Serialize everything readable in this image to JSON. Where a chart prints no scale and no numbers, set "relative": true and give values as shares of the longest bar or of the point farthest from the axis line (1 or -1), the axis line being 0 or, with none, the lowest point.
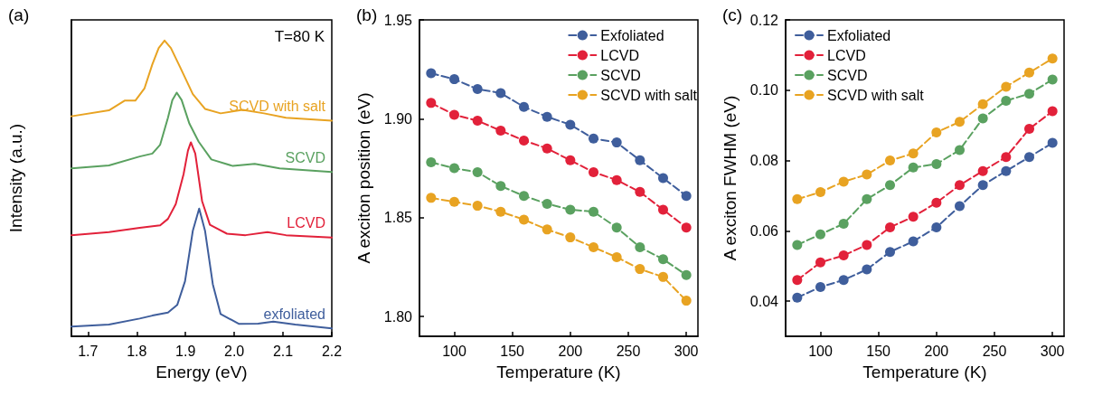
{
  "chart_data": [
    {
      "type": "line",
      "title": "(a)",
      "xlabel": "Energy (eV)",
      "ylabel": "Intensity (a.u.)",
      "relative": true,
      "legend": false,
      "marker": "none",
      "line_style": "solid",
      "grid": false,
      "annotations": [
        "T=80 K"
      ],
      "xlim": [
        1.666,
        2.2
      ],
      "xticks": [
        {
          "value": 1.7,
          "label": "1.7"
        },
        {
          "value": 1.8,
          "label": "1.8"
        },
        {
          "value": 1.9,
          "label": "1.9"
        },
        {
          "value": 2.0,
          "label": "2.0"
        },
        {
          "value": 2.1,
          "label": "2.1"
        },
        {
          "value": 2.2,
          "label": "2.2"
        }
      ],
      "series": [
        {
          "name": "exfoliated",
          "color": "#3f5e9c",
          "x": [
            1.666,
            1.743,
            1.806,
            1.832,
            1.864,
            1.883,
            1.899,
            1.915,
            1.928,
            1.94,
            1.956,
            1.972,
            2.01,
            2.049,
            2.08,
            2.125,
            2.2
          ],
          "values": [
            0.033,
            0.04,
            0.06,
            0.07,
            0.08,
            0.106,
            0.186,
            0.357,
            0.432,
            0.357,
            0.176,
            0.075,
            0.042,
            0.043,
            0.05,
            0.04,
            0.027
          ]
        },
        {
          "name": "LCVD",
          "color": "#e2213a",
          "x": [
            1.666,
            1.743,
            1.806,
            1.848,
            1.864,
            1.88,
            1.896,
            1.905,
            1.911,
            1.92,
            1.934,
            1.95,
            1.985,
            2.023,
            2.068,
            2.106,
            2.2
          ],
          "values": [
            0.342,
            0.352,
            0.367,
            0.375,
            0.397,
            0.447,
            0.548,
            0.628,
            0.656,
            0.618,
            0.457,
            0.377,
            0.347,
            0.342,
            0.352,
            0.342,
            0.334
          ]
        },
        {
          "name": "SCVD",
          "color": "#5aa160",
          "x": [
            1.666,
            1.743,
            1.806,
            1.832,
            1.848,
            1.864,
            1.873,
            1.882,
            1.892,
            1.908,
            1.927,
            1.953,
            1.997,
            2.042,
            2.093,
            2.2
          ],
          "values": [
            0.568,
            0.578,
            0.608,
            0.618,
            0.648,
            0.739,
            0.799,
            0.824,
            0.799,
            0.719,
            0.658,
            0.598,
            0.576,
            0.583,
            0.568,
            0.556
          ]
        },
        {
          "name": "SCVD with salt",
          "color": "#e8a322",
          "x": [
            1.666,
            1.743,
            1.775,
            1.797,
            1.816,
            1.832,
            1.845,
            1.857,
            1.87,
            1.889,
            1.915,
            1.94,
            1.972,
            2.017,
            2.061,
            2.106,
            2.2
          ],
          "values": [
            0.744,
            0.764,
            0.797,
            0.797,
            0.839,
            0.92,
            0.975,
            1.0,
            0.975,
            0.91,
            0.819,
            0.769,
            0.754,
            0.766,
            0.754,
            0.739,
            0.729
          ]
        }
      ]
    },
    {
      "type": "line",
      "title": "(b)",
      "xlabel": "Temperature (K)",
      "ylabel": "A exciton position (eV)",
      "legend": "top right",
      "marker": "circle",
      "line_style": "dashed",
      "grid": false,
      "x": [
        80,
        100,
        120,
        140,
        160,
        180,
        200,
        220,
        240,
        260,
        280,
        300
      ],
      "xlim": [
        70,
        310
      ],
      "xticks": [
        100,
        150,
        200,
        250,
        300
      ],
      "ylim": [
        1.79,
        1.95
      ],
      "yticks": [
        {
          "value": 1.8,
          "label": "1.80"
        },
        {
          "value": 1.85,
          "label": "1.85"
        },
        {
          "value": 1.9,
          "label": "1.90"
        },
        {
          "value": 1.95,
          "label": "1.95"
        }
      ],
      "series": [
        {
          "name": "Exfoliated",
          "color": "#3f5e9c",
          "values": [
            1.923,
            1.92,
            1.915,
            1.913,
            1.906,
            1.901,
            1.897,
            1.89,
            1.888,
            1.879,
            1.87,
            1.861
          ]
        },
        {
          "name": "LCVD",
          "color": "#e2213a",
          "values": [
            1.908,
            1.902,
            1.899,
            1.894,
            1.889,
            1.885,
            1.879,
            1.873,
            1.869,
            1.863,
            1.854,
            1.845
          ]
        },
        {
          "name": "SCVD",
          "color": "#5aa160",
          "values": [
            1.878,
            1.875,
            1.873,
            1.866,
            1.861,
            1.857,
            1.854,
            1.853,
            1.845,
            1.835,
            1.829,
            1.821
          ]
        },
        {
          "name": "SCVD with salt",
          "color": "#e8a322",
          "values": [
            1.86,
            1.858,
            1.856,
            1.853,
            1.849,
            1.844,
            1.84,
            1.835,
            1.83,
            1.824,
            1.82,
            1.808
          ]
        }
      ]
    },
    {
      "type": "line",
      "title": "(c)",
      "xlabel": "Temperature (K)",
      "ylabel": "A exciton FWHM (eV)",
      "legend": "top left",
      "marker": "circle",
      "line_style": "dashed",
      "grid": false,
      "x": [
        80,
        100,
        120,
        140,
        160,
        180,
        200,
        220,
        240,
        260,
        280,
        300
      ],
      "xlim": [
        70,
        310
      ],
      "xticks": [
        100,
        150,
        200,
        250,
        300
      ],
      "ylim": [
        0.03,
        0.12
      ],
      "yticks": [
        {
          "value": 0.04,
          "label": "0.04"
        },
        {
          "value": 0.06,
          "label": "0.06"
        },
        {
          "value": 0.08,
          "label": "0.08"
        },
        {
          "value": 0.1,
          "label": "0.10"
        },
        {
          "value": 0.12,
          "label": "0.12"
        }
      ],
      "series": [
        {
          "name": "Exfoliated",
          "color": "#3f5e9c",
          "values": [
            0.041,
            0.044,
            0.046,
            0.049,
            0.054,
            0.057,
            0.061,
            0.067,
            0.073,
            0.077,
            0.081,
            0.085
          ]
        },
        {
          "name": "LCVD",
          "color": "#e2213a",
          "values": [
            0.046,
            0.051,
            0.053,
            0.056,
            0.061,
            0.064,
            0.068,
            0.073,
            0.077,
            0.081,
            0.089,
            0.094
          ]
        },
        {
          "name": "SCVD",
          "color": "#5aa160",
          "values": [
            0.056,
            0.059,
            0.062,
            0.069,
            0.073,
            0.078,
            0.079,
            0.083,
            0.092,
            0.097,
            0.099,
            0.103
          ]
        },
        {
          "name": "SCVD with salt",
          "color": "#e8a322",
          "values": [
            0.069,
            0.071,
            0.074,
            0.076,
            0.08,
            0.082,
            0.088,
            0.091,
            0.096,
            0.101,
            0.105,
            0.109
          ]
        }
      ]
    }
  ]
}
